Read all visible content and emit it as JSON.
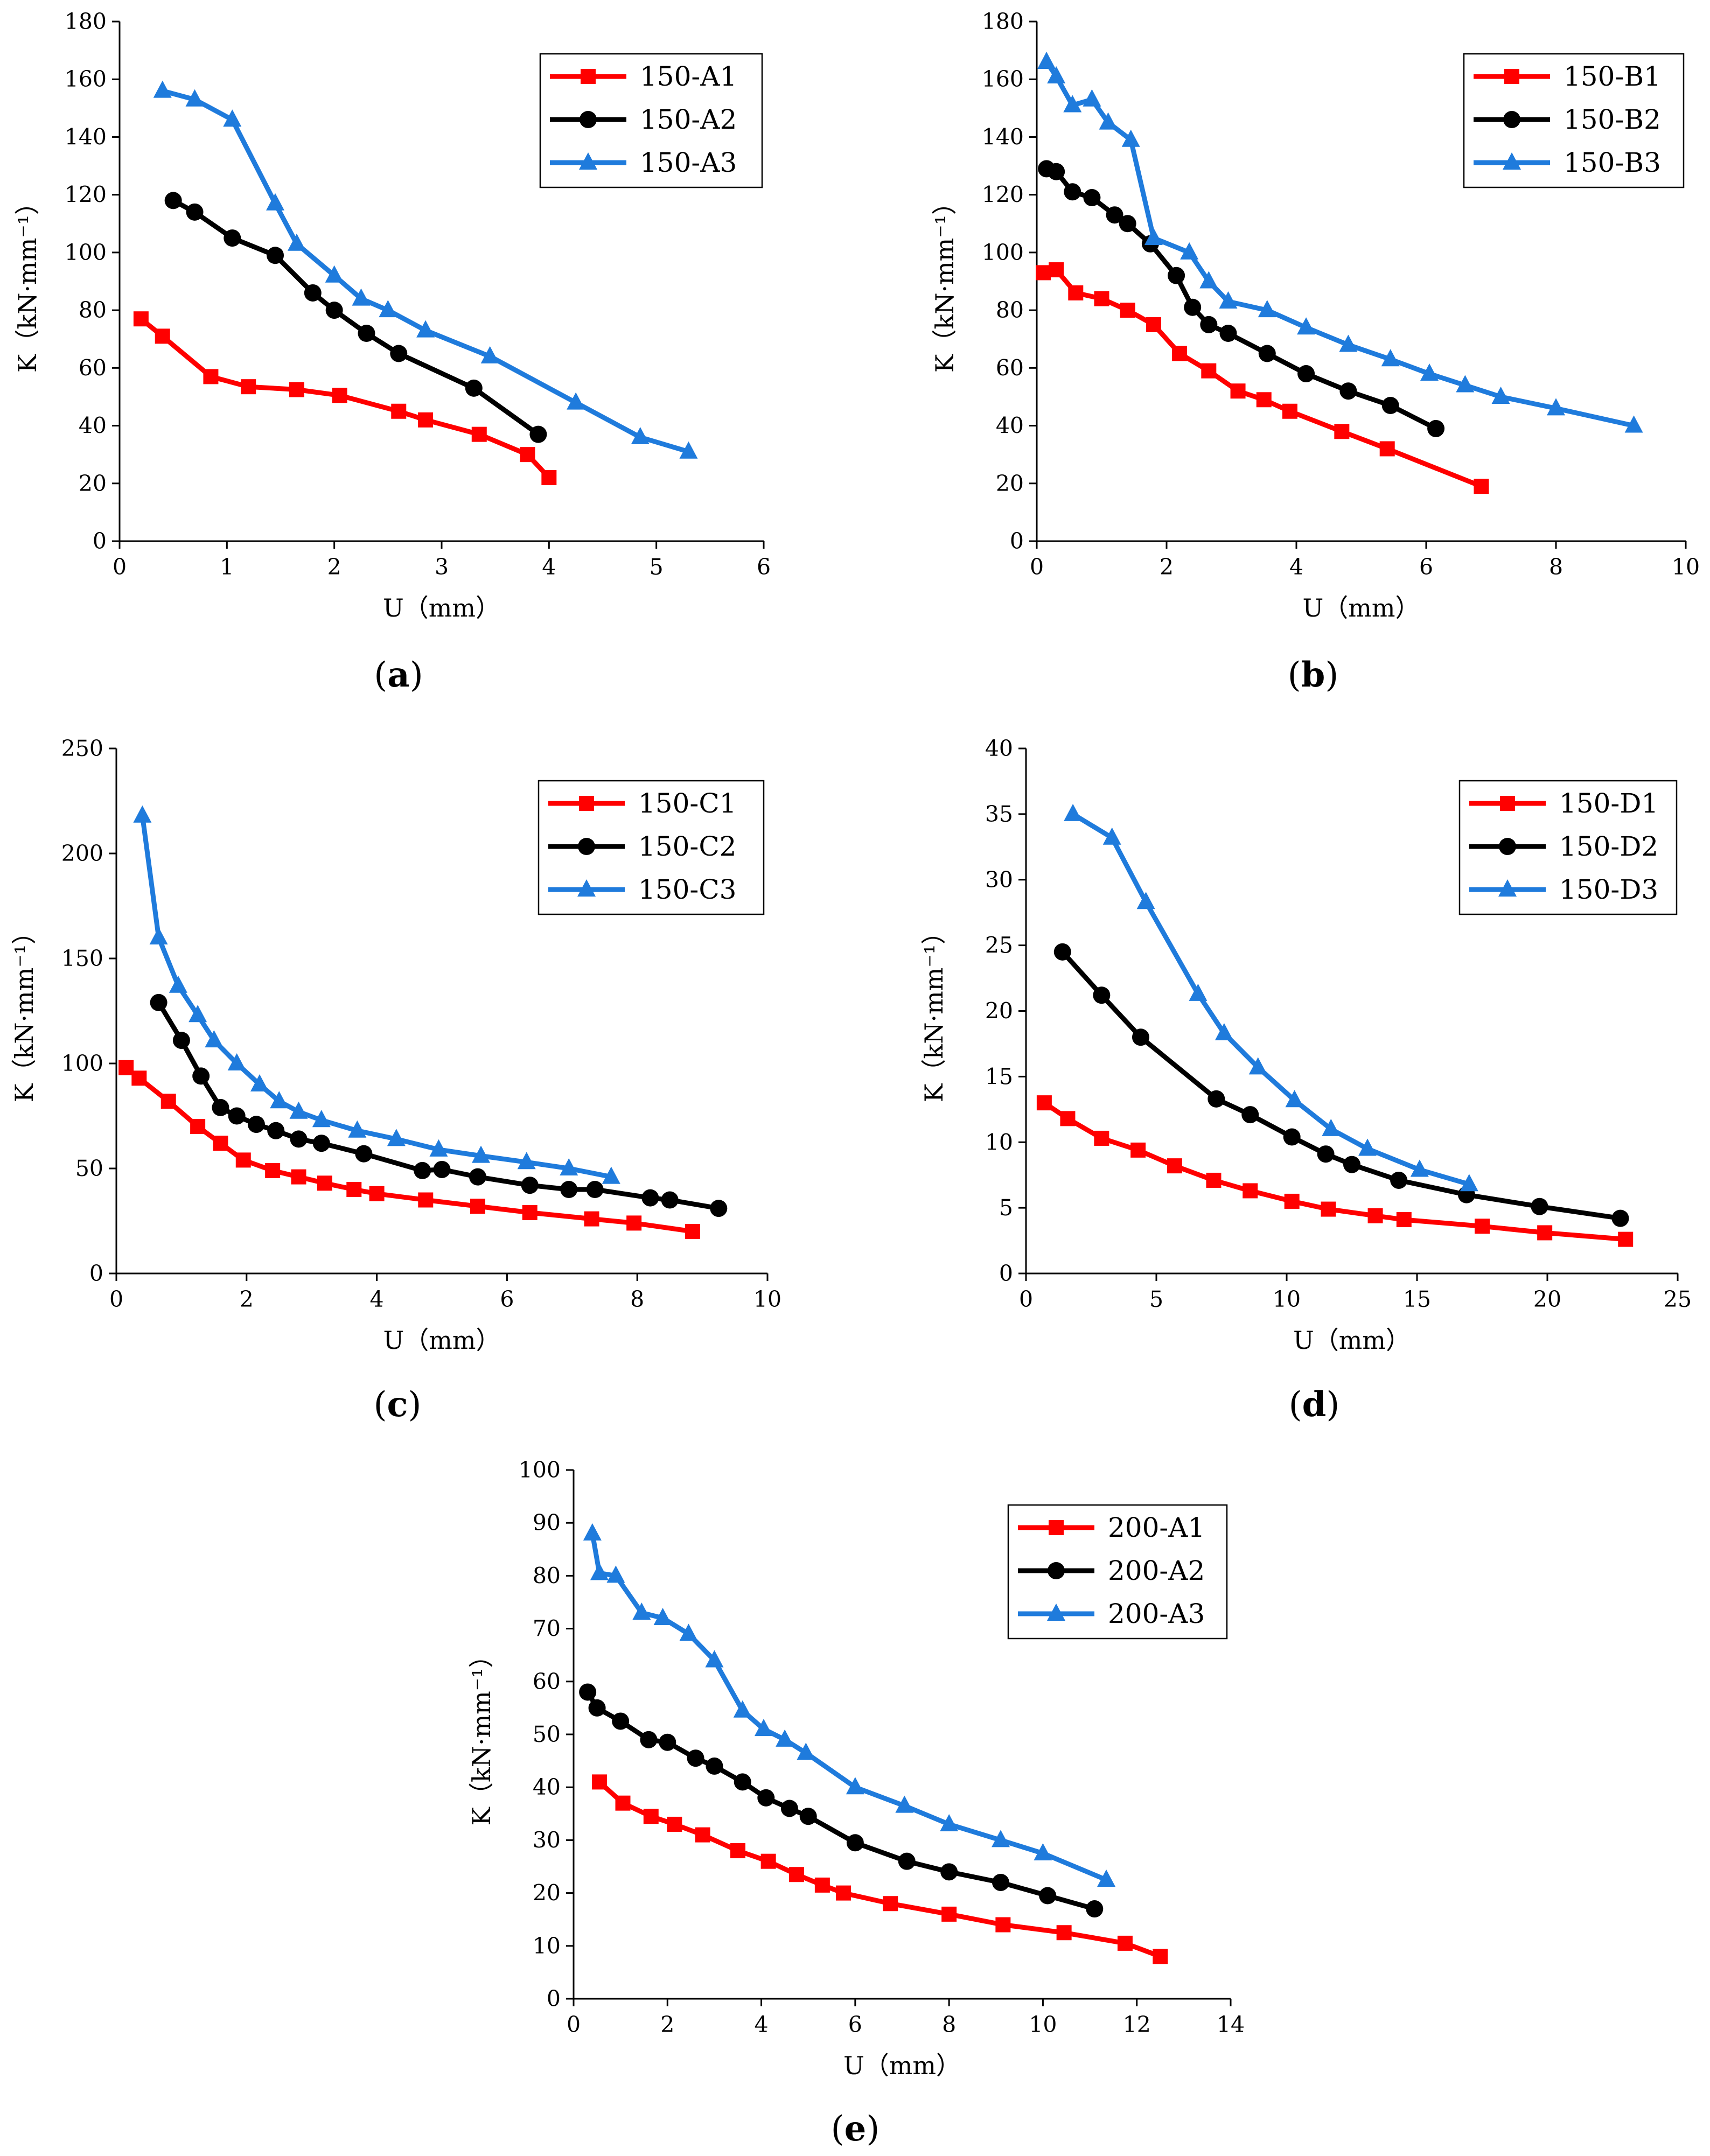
{
  "colors": {
    "red": "#FF0000",
    "black": "#000000",
    "blue": "#1F7BDC"
  },
  "chart_data": [
    {
      "id": "a",
      "type": "line",
      "caption": "a",
      "xlabel": "U（mm）",
      "ylabel": "K（kN·mm⁻¹）",
      "xlim": [
        0,
        6
      ],
      "ylim": [
        0,
        180
      ],
      "xticks": [
        0,
        1,
        2,
        3,
        4,
        5,
        6
      ],
      "yticks": [
        0,
        20,
        40,
        60,
        80,
        100,
        120,
        140,
        160,
        180
      ],
      "legend_position": "top-right",
      "series": [
        {
          "name": "150-A1",
          "color": "red",
          "marker": "square",
          "x": [
            0.2,
            0.4,
            0.85,
            1.2,
            1.65,
            2.05,
            2.6,
            2.85,
            3.35,
            3.8,
            4.0
          ],
          "y": [
            77,
            71,
            57,
            53.5,
            52.5,
            50.5,
            45,
            42,
            37,
            30,
            22
          ]
        },
        {
          "name": "150-A2",
          "color": "black",
          "marker": "circle",
          "x": [
            0.5,
            0.7,
            1.05,
            1.45,
            1.8,
            2.0,
            2.3,
            2.6,
            3.3,
            3.9
          ],
          "y": [
            118,
            114,
            105,
            99,
            86,
            80,
            72,
            65,
            53,
            37
          ]
        },
        {
          "name": "150-A3",
          "color": "blue",
          "marker": "triangle",
          "x": [
            0.4,
            0.7,
            1.05,
            1.45,
            1.65,
            2.0,
            2.25,
            2.5,
            2.85,
            3.45,
            4.25,
            4.85,
            5.3
          ],
          "y": [
            156,
            153,
            146,
            117,
            103,
            92,
            84,
            80,
            73,
            64,
            48,
            36,
            31
          ]
        }
      ]
    },
    {
      "id": "b",
      "type": "line",
      "caption": "b",
      "xlabel": "U（mm）",
      "ylabel": "K（kN·mm⁻¹）",
      "xlim": [
        0,
        10
      ],
      "ylim": [
        0,
        180
      ],
      "xticks": [
        0,
        2,
        4,
        6,
        8,
        10
      ],
      "yticks": [
        0,
        20,
        40,
        60,
        80,
        100,
        120,
        140,
        160,
        180
      ],
      "legend_position": "top-right",
      "series": [
        {
          "name": "150-B1",
          "color": "red",
          "marker": "square",
          "x": [
            0.1,
            0.3,
            0.6,
            1.0,
            1.4,
            1.8,
            2.2,
            2.65,
            3.1,
            3.5,
            3.9,
            4.7,
            5.4,
            6.85
          ],
          "y": [
            93,
            94,
            86,
            84,
            80,
            75,
            65,
            59,
            52,
            49,
            45,
            38,
            32,
            19
          ]
        },
        {
          "name": "150-B2",
          "color": "black",
          "marker": "circle",
          "x": [
            0.15,
            0.3,
            0.55,
            0.85,
            1.2,
            1.4,
            1.75,
            2.15,
            2.4,
            2.65,
            2.95,
            3.55,
            4.15,
            4.8,
            5.45,
            6.15
          ],
          "y": [
            129,
            128,
            121,
            119,
            113,
            110,
            103,
            92,
            81,
            75,
            72,
            65,
            58,
            52,
            47,
            39
          ]
        },
        {
          "name": "150-B3",
          "color": "blue",
          "marker": "triangle",
          "x": [
            0.15,
            0.3,
            0.55,
            0.85,
            1.1,
            1.45,
            1.8,
            2.35,
            2.65,
            2.95,
            3.55,
            4.15,
            4.8,
            5.45,
            6.05,
            6.6,
            7.15,
            8.0,
            9.2
          ],
          "y": [
            166,
            161,
            151,
            153,
            145,
            139,
            105,
            100,
            90,
            83,
            80,
            74,
            68,
            63,
            58,
            54,
            50,
            46,
            40
          ]
        }
      ]
    },
    {
      "id": "c",
      "type": "line",
      "caption": "c",
      "xlabel": "U（mm）",
      "ylabel": "K（kN·mm⁻¹）",
      "xlim": [
        0,
        10
      ],
      "ylim": [
        0,
        250
      ],
      "xticks": [
        0,
        2,
        4,
        6,
        8,
        10
      ],
      "yticks": [
        0,
        50,
        100,
        150,
        200,
        250
      ],
      "legend_position": "top-right",
      "series": [
        {
          "name": "150-C1",
          "color": "red",
          "marker": "square",
          "x": [
            0.15,
            0.35,
            0.8,
            1.25,
            1.6,
            1.95,
            2.4,
            2.8,
            3.2,
            3.65,
            4.0,
            4.75,
            5.55,
            6.35,
            7.3,
            7.95,
            8.85
          ],
          "y": [
            98,
            93,
            82,
            70,
            62,
            54,
            49,
            46,
            43,
            40,
            38,
            35,
            32,
            29,
            26,
            24,
            20
          ]
        },
        {
          "name": "150-C2",
          "color": "black",
          "marker": "circle",
          "x": [
            0.65,
            1.0,
            1.3,
            1.6,
            1.85,
            2.15,
            2.45,
            2.8,
            3.15,
            3.8,
            4.7,
            5.0,
            5.55,
            6.35,
            6.95,
            7.35,
            8.2,
            8.5,
            9.25
          ],
          "y": [
            129,
            111,
            94,
            79,
            75,
            71,
            68,
            64,
            62,
            57,
            49,
            49.5,
            46,
            42,
            40,
            40,
            36,
            35,
            31
          ]
        },
        {
          "name": "150-C3",
          "color": "blue",
          "marker": "triangle",
          "x": [
            0.4,
            0.65,
            0.95,
            1.25,
            1.5,
            1.85,
            2.2,
            2.5,
            2.8,
            3.15,
            3.7,
            4.3,
            4.95,
            5.6,
            6.3,
            6.95,
            7.6
          ],
          "y": [
            218,
            160,
            137,
            123,
            111,
            100,
            90,
            82,
            77,
            73,
            68,
            64,
            59,
            56,
            53,
            50,
            46
          ]
        }
      ]
    },
    {
      "id": "d",
      "type": "line",
      "caption": "d",
      "xlabel": "U（mm）",
      "ylabel": "K（kN·mm⁻¹）",
      "xlim": [
        0,
        25
      ],
      "ylim": [
        0,
        40
      ],
      "xticks": [
        0,
        5,
        10,
        15,
        20,
        25
      ],
      "yticks": [
        0,
        5,
        10,
        15,
        20,
        25,
        30,
        35,
        40
      ],
      "legend_position": "top-right",
      "series": [
        {
          "name": "150-D1",
          "color": "red",
          "marker": "square",
          "x": [
            0.7,
            1.6,
            2.9,
            4.3,
            5.7,
            7.2,
            8.6,
            10.2,
            11.6,
            13.4,
            14.5,
            17.5,
            19.9,
            23.0
          ],
          "y": [
            13.0,
            11.8,
            10.3,
            9.4,
            8.2,
            7.1,
            6.3,
            5.5,
            4.9,
            4.4,
            4.1,
            3.6,
            3.1,
            2.6
          ]
        },
        {
          "name": "150-D2",
          "color": "black",
          "marker": "circle",
          "x": [
            1.4,
            2.9,
            4.4,
            7.3,
            8.6,
            10.2,
            11.5,
            12.5,
            14.3,
            16.9,
            19.7,
            22.8
          ],
          "y": [
            24.5,
            21.2,
            18.0,
            13.3,
            12.1,
            10.4,
            9.1,
            8.3,
            7.1,
            6.0,
            5.1,
            4.2
          ]
        },
        {
          "name": "150-D3",
          "color": "blue",
          "marker": "triangle",
          "x": [
            1.8,
            3.3,
            4.6,
            6.6,
            7.6,
            8.9,
            10.3,
            11.7,
            13.1,
            15.1,
            17.0
          ],
          "y": [
            35.0,
            33.2,
            28.3,
            21.3,
            18.3,
            15.7,
            13.2,
            11.0,
            9.5,
            7.9,
            6.8
          ]
        }
      ]
    },
    {
      "id": "e",
      "type": "line",
      "caption": "e",
      "xlabel": "U（mm）",
      "ylabel": "K（kN·mm⁻¹）",
      "xlim": [
        0,
        14
      ],
      "ylim": [
        0,
        100
      ],
      "xticks": [
        0,
        2,
        4,
        6,
        8,
        10,
        12,
        14
      ],
      "yticks": [
        0,
        10,
        20,
        30,
        40,
        50,
        60,
        70,
        80,
        90,
        100
      ],
      "legend_position": "top-right",
      "series": [
        {
          "name": "200-A1",
          "color": "red",
          "marker": "square",
          "x": [
            0.55,
            1.05,
            1.65,
            2.15,
            2.75,
            3.5,
            4.15,
            4.75,
            5.3,
            5.75,
            6.75,
            8.0,
            9.15,
            10.45,
            11.75,
            12.5
          ],
          "y": [
            41,
            37,
            34.5,
            33,
            31,
            28,
            26,
            23.5,
            21.5,
            20,
            18,
            16,
            14,
            12.5,
            10.5,
            8
          ]
        },
        {
          "name": "200-A2",
          "color": "black",
          "marker": "circle",
          "x": [
            0.3,
            0.5,
            1.0,
            1.6,
            2.0,
            2.6,
            3.0,
            3.6,
            4.1,
            4.6,
            5.0,
            6.0,
            7.1,
            8.0,
            9.1,
            10.1,
            11.1
          ],
          "y": [
            58,
            55,
            52.5,
            49,
            48.5,
            45.5,
            44,
            41,
            38,
            36,
            34.5,
            29.5,
            26,
            24,
            22,
            19.5,
            17
          ]
        },
        {
          "name": "200-A3",
          "color": "blue",
          "marker": "triangle",
          "x": [
            0.4,
            0.55,
            0.9,
            1.45,
            1.9,
            2.45,
            3.0,
            3.6,
            4.05,
            4.5,
            4.95,
            6.0,
            7.05,
            8.0,
            9.1,
            10.0,
            11.35
          ],
          "y": [
            88,
            80.5,
            80,
            73,
            72,
            69,
            64,
            54.5,
            51,
            49,
            46.5,
            40,
            36.5,
            33,
            30,
            27.5,
            22.5
          ]
        }
      ]
    }
  ]
}
